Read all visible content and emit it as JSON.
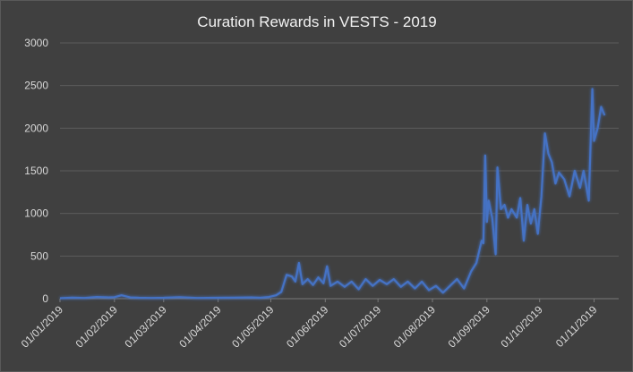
{
  "chart_data": {
    "type": "line",
    "title": "Curation Rewards in VESTS - 2019",
    "xlabel": "",
    "ylabel": "",
    "ylim": [
      0,
      3000
    ],
    "yticks": [
      0,
      500,
      1000,
      1500,
      2000,
      2500,
      3000
    ],
    "x_range": [
      "01/01/2019",
      "15/11/2019"
    ],
    "xtick_labels": [
      "01/01/2019",
      "01/02/2019",
      "01/03/2019",
      "01/04/2019",
      "01/05/2019",
      "01/06/2019",
      "01/07/2019",
      "01/08/2019",
      "01/09/2019",
      "01/10/2019",
      "01/11/2019"
    ],
    "grid": true,
    "legend": "none",
    "series": [
      {
        "color": "#4472c4",
        "points": [
          [
            "01/01/2019",
            5
          ],
          [
            "08/01/2019",
            12
          ],
          [
            "15/01/2019",
            8
          ],
          [
            "22/01/2019",
            20
          ],
          [
            "29/01/2019",
            15
          ],
          [
            "01/02/2019",
            18
          ],
          [
            "05/02/2019",
            40
          ],
          [
            "10/02/2019",
            15
          ],
          [
            "15/02/2019",
            10
          ],
          [
            "22/02/2019",
            8
          ],
          [
            "01/03/2019",
            10
          ],
          [
            "10/03/2019",
            18
          ],
          [
            "20/03/2019",
            8
          ],
          [
            "01/04/2019",
            10
          ],
          [
            "10/04/2019",
            12
          ],
          [
            "20/04/2019",
            15
          ],
          [
            "25/04/2019",
            10
          ],
          [
            "30/04/2019",
            20
          ],
          [
            "04/05/2019",
            40
          ],
          [
            "07/05/2019",
            80
          ],
          [
            "10/05/2019",
            280
          ],
          [
            "13/05/2019",
            260
          ],
          [
            "15/05/2019",
            200
          ],
          [
            "17/05/2019",
            420
          ],
          [
            "19/05/2019",
            170
          ],
          [
            "22/05/2019",
            230
          ],
          [
            "25/05/2019",
            160
          ],
          [
            "28/05/2019",
            250
          ],
          [
            "31/05/2019",
            180
          ],
          [
            "02/06/2019",
            380
          ],
          [
            "04/06/2019",
            150
          ],
          [
            "08/06/2019",
            200
          ],
          [
            "12/06/2019",
            140
          ],
          [
            "16/06/2019",
            200
          ],
          [
            "20/06/2019",
            110
          ],
          [
            "24/06/2019",
            230
          ],
          [
            "28/06/2019",
            150
          ],
          [
            "02/07/2019",
            220
          ],
          [
            "06/07/2019",
            170
          ],
          [
            "10/07/2019",
            230
          ],
          [
            "14/07/2019",
            140
          ],
          [
            "18/07/2019",
            200
          ],
          [
            "22/07/2019",
            120
          ],
          [
            "26/07/2019",
            200
          ],
          [
            "30/07/2019",
            100
          ],
          [
            "03/08/2019",
            150
          ],
          [
            "07/08/2019",
            70
          ],
          [
            "11/08/2019",
            150
          ],
          [
            "15/08/2019",
            230
          ],
          [
            "19/08/2019",
            120
          ],
          [
            "23/08/2019",
            320
          ],
          [
            "26/08/2019",
            420
          ],
          [
            "29/08/2019",
            680
          ],
          [
            "30/08/2019",
            650
          ],
          [
            "31/08/2019",
            1680
          ],
          [
            "01/09/2019",
            900
          ],
          [
            "02/09/2019",
            1150
          ],
          [
            "04/09/2019",
            950
          ],
          [
            "06/09/2019",
            520
          ],
          [
            "07/09/2019",
            1540
          ],
          [
            "09/09/2019",
            1050
          ],
          [
            "11/09/2019",
            1100
          ],
          [
            "13/09/2019",
            950
          ],
          [
            "15/09/2019",
            1050
          ],
          [
            "18/09/2019",
            950
          ],
          [
            "20/09/2019",
            1180
          ],
          [
            "22/09/2019",
            680
          ],
          [
            "24/09/2019",
            1100
          ],
          [
            "26/09/2019",
            880
          ],
          [
            "28/09/2019",
            1050
          ],
          [
            "30/09/2019",
            760
          ],
          [
            "02/10/2019",
            1200
          ],
          [
            "04/10/2019",
            1940
          ],
          [
            "06/10/2019",
            1700
          ],
          [
            "08/10/2019",
            1600
          ],
          [
            "10/10/2019",
            1350
          ],
          [
            "12/10/2019",
            1480
          ],
          [
            "15/10/2019",
            1400
          ],
          [
            "18/10/2019",
            1200
          ],
          [
            "21/10/2019",
            1500
          ],
          [
            "24/10/2019",
            1300
          ],
          [
            "26/10/2019",
            1500
          ],
          [
            "29/10/2019",
            1150
          ],
          [
            "31/10/2019",
            2460
          ],
          [
            "01/11/2019",
            1850
          ],
          [
            "03/11/2019",
            2000
          ],
          [
            "05/11/2019",
            2250
          ],
          [
            "07/11/2019",
            2150
          ]
        ]
      }
    ]
  }
}
